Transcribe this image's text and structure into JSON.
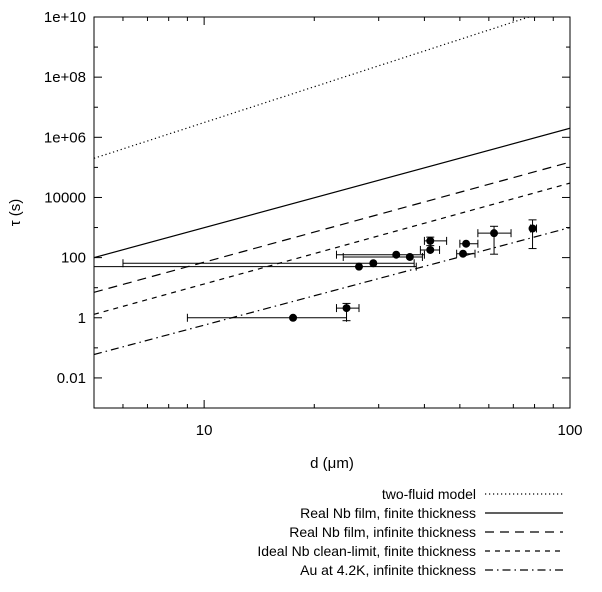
{
  "chart_data": {
    "type": "line",
    "xlabel": "d (μm)",
    "ylabel": "τ (s)",
    "xscale": "log",
    "yscale": "log",
    "xlim": [
      5,
      100
    ],
    "ylim": [
      0.001,
      10000000000
    ],
    "x_ticks": [
      {
        "value": 10,
        "label": "10"
      },
      {
        "value": 100,
        "label": "100"
      }
    ],
    "y_ticks": [
      {
        "value": 0.01,
        "label": "0.01"
      },
      {
        "value": 1,
        "label": "1"
      },
      {
        "value": 100,
        "label": "100"
      },
      {
        "value": 10000,
        "label": "10000"
      },
      {
        "value": 1000000,
        "label": "1e+06"
      },
      {
        "value": 100000000,
        "label": "1e+08"
      },
      {
        "value": 10000000000,
        "label": "1e+10"
      }
    ],
    "grid": false,
    "legend_position": "bottom",
    "series": [
      {
        "name": "two-fluid model",
        "dash": "dotted",
        "x": [
          5,
          77.2
        ],
        "y": [
          200000,
          10000000000
        ]
      },
      {
        "name": "Real Nb film, finite thickness",
        "dash": "solid",
        "x": [
          5,
          100
        ],
        "y": [
          100,
          2000000
        ]
      },
      {
        "name": "Real Nb film, infinite thickness",
        "dash": "dashed",
        "x": [
          5,
          100
        ],
        "y": [
          7,
          150000
        ]
      },
      {
        "name": "Ideal Nb clean-limit, finite thickness",
        "dash": "short-dashed",
        "x": [
          5,
          100
        ],
        "y": [
          1.3,
          30000
        ]
      },
      {
        "name": "Au at 4.2K, infinite thickness",
        "dash": "dash-dot",
        "x": [
          5,
          100
        ],
        "y": [
          0.06,
          1000
        ]
      }
    ],
    "points": [
      {
        "x": 17.5,
        "y": 1,
        "xerr": [
          9,
          24.5
        ],
        "yerr": [
          1,
          1
        ]
      },
      {
        "x": 24.5,
        "y": 2.1,
        "xerr": [
          23,
          26.5
        ],
        "yerr": [
          0.8,
          3
        ]
      },
      {
        "x": 26.5,
        "y": 50,
        "xerr": [
          5,
          38
        ],
        "yerr": [
          50,
          50
        ]
      },
      {
        "x": 29,
        "y": 65,
        "xerr": [
          6,
          37.5
        ],
        "yerr": [
          65,
          65
        ]
      },
      {
        "x": 33.5,
        "y": 125,
        "xerr": [
          23,
          40
        ],
        "yerr": [
          125,
          125
        ]
      },
      {
        "x": 36.5,
        "y": 105,
        "xerr": [
          24,
          39.5
        ],
        "yerr": [
          105,
          105
        ]
      },
      {
        "x": 41.5,
        "y": 360,
        "xerr": [
          40,
          46
        ],
        "yerr": [
          250,
          480
        ]
      },
      {
        "x": 41.5,
        "y": 180,
        "xerr": [
          39,
          44
        ],
        "yerr": [
          180,
          180
        ]
      },
      {
        "x": 51,
        "y": 135,
        "xerr": [
          49,
          55
        ],
        "yerr": [
          135,
          135
        ]
      },
      {
        "x": 52,
        "y": 290,
        "xerr": [
          50,
          56
        ],
        "yerr": [
          290,
          290
        ]
      },
      {
        "x": 62,
        "y": 650,
        "xerr": [
          56,
          69
        ],
        "yerr": [
          130,
          1100
        ]
      },
      {
        "x": 79,
        "y": 930,
        "xerr": [
          78,
          81
        ],
        "yerr": [
          200,
          1800
        ]
      }
    ]
  }
}
